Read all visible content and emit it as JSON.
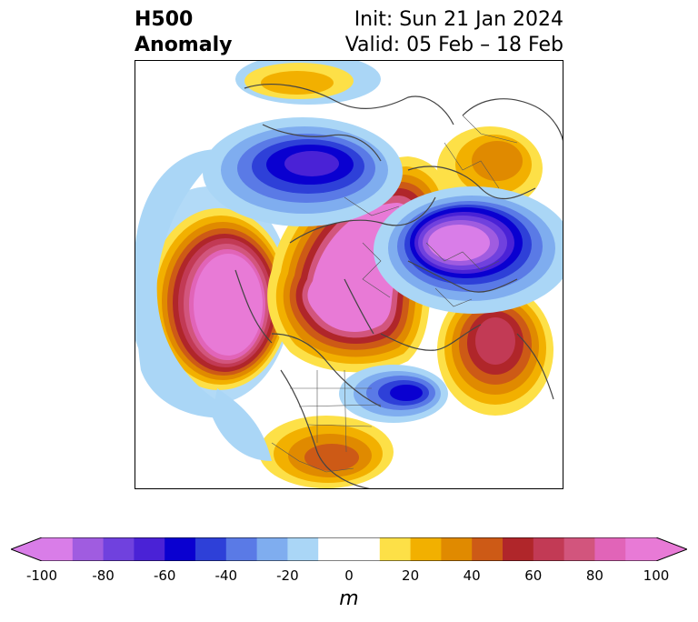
{
  "header": {
    "title_line1": "H500",
    "title_line2": "Anomaly",
    "init_label": "Init: Sun 21 Jan 2024",
    "valid_label": "Valid: 05 Feb – 18 Feb"
  },
  "map": {
    "projection": "north-polar-stereographic",
    "anomaly_centers": [
      {
        "sign": "positive",
        "max_m": 100,
        "region": "Gulf of Alaska / North Pacific"
      },
      {
        "sign": "positive",
        "max_m": 100,
        "region": "Arctic / Canada / Greenland"
      },
      {
        "sign": "positive",
        "max_m": 60,
        "region": "North Atlantic"
      },
      {
        "sign": "positive",
        "max_m": 40,
        "region": "Gulf of Mexico"
      },
      {
        "sign": "positive",
        "max_m": 40,
        "region": "Siberia"
      },
      {
        "sign": "negative",
        "min_m": -80,
        "region": "Northern Europe / Scandinavia"
      },
      {
        "sign": "negative",
        "min_m": -60,
        "region": "Eastern Siberia / Bering"
      },
      {
        "sign": "negative",
        "min_m": -60,
        "region": "Southeastern United States"
      }
    ]
  },
  "colorbar": {
    "unit": "m",
    "extend": "both",
    "levels": [
      -100,
      -90,
      -80,
      -70,
      -60,
      -50,
      -40,
      -30,
      -20,
      -10,
      10,
      20,
      30,
      40,
      50,
      60,
      70,
      80,
      90,
      100
    ],
    "colors": [
      "#d97de8",
      "#a05ce0",
      "#7041de",
      "#4a22d6",
      "#0a00d0",
      "#2e40d8",
      "#5a7ae6",
      "#7fadef",
      "#aad6f6",
      "#ffffff",
      "#fde047",
      "#f2b000",
      "#e08a00",
      "#cd5a16",
      "#b0262a",
      "#c23a55",
      "#d2557d",
      "#e164b8",
      "#e87ad6"
    ],
    "under_color": "#d97de8",
    "over_color": "#e87ad6",
    "tick_labels": [
      "-100",
      "-80",
      "-60",
      "-40",
      "-20",
      "0",
      "20",
      "40",
      "60",
      "80",
      "100"
    ]
  }
}
